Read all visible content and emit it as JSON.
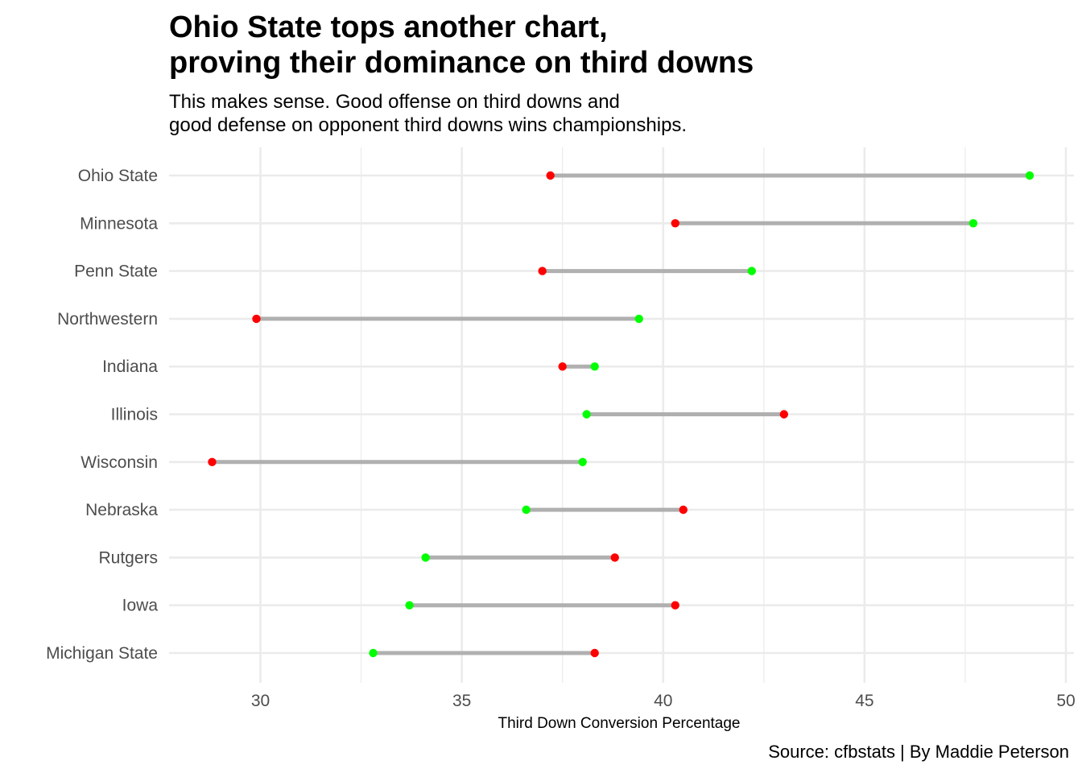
{
  "title": "Ohio State tops another chart,\nproving their dominance on third downs",
  "subtitle": "This makes sense. Good offense on third downs and\n good defense on opponent third downs wins championships.",
  "caption": "Source: cfbstats | By Maddie Peterson",
  "colors": {
    "offense_point": "#00ff00",
    "defense_point": "#ff0000",
    "segment": "#b0b0b0",
    "grid": "#ebebeb"
  },
  "chart_data": {
    "type": "dumbbell",
    "title": "Ohio State tops another chart,\nproving their dominance on third downs",
    "xlabel": "Third Down Conversion Percentage",
    "ylabel": "",
    "xlim": [
      27.8,
      50.0
    ],
    "xticks": [
      30,
      35,
      40,
      45,
      50
    ],
    "grid": true,
    "categories": [
      "Ohio State",
      "Minnesota",
      "Penn State",
      "Northwestern",
      "Indiana",
      "Illinois",
      "Wisconsin",
      "Nebraska",
      "Rutgers",
      "Iowa",
      "Michigan State"
    ],
    "series": [
      {
        "color": "#00ff00",
        "values": [
          49.1,
          47.7,
          42.2,
          39.4,
          38.3,
          38.1,
          38.0,
          36.6,
          34.1,
          33.7,
          32.8
        ]
      },
      {
        "color": "#ff0000",
        "values": [
          37.2,
          40.3,
          37.0,
          29.9,
          37.5,
          43.0,
          28.8,
          40.5,
          38.8,
          40.3,
          38.3
        ]
      }
    ]
  }
}
